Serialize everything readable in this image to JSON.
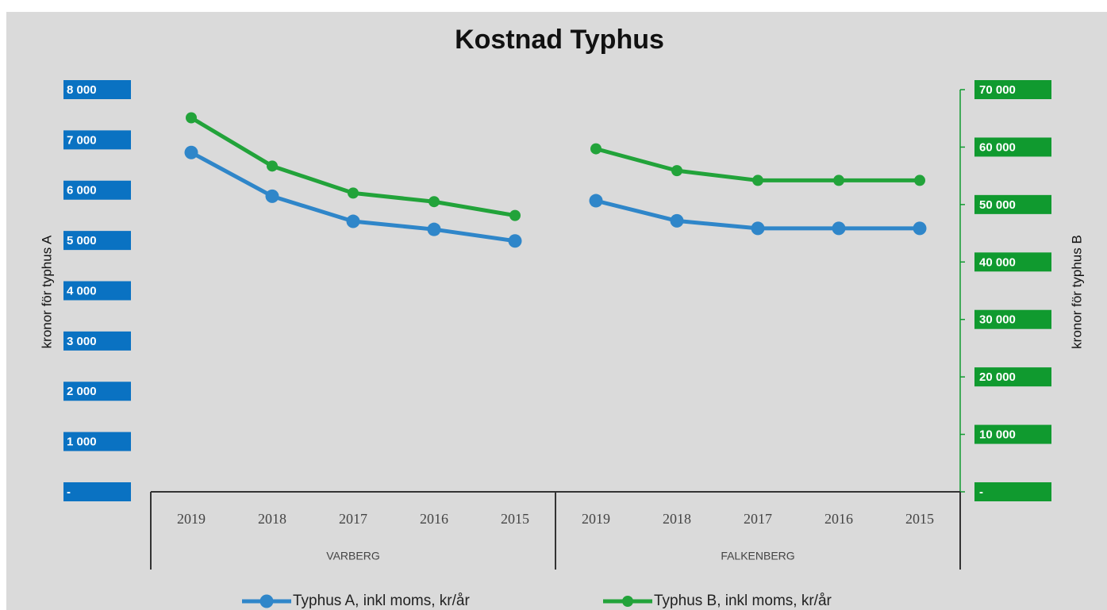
{
  "chart_data": {
    "type": "line",
    "title": "Kostnad Typhus",
    "categories": [
      "2019",
      "2018",
      "2017",
      "2016",
      "2015",
      "2019",
      "2018",
      "2017",
      "2016",
      "2015"
    ],
    "groups": [
      {
        "name": "VARBERG",
        "count": 5
      },
      {
        "name": "FALKENBERG",
        "count": 5
      }
    ],
    "y_label": "kronor för typhus A",
    "y2_label": "kronor för typhus B",
    "ylim": [
      0,
      8000
    ],
    "yticks": [
      {
        "value": 0,
        "label": "-"
      },
      {
        "value": 1000,
        "label": "1 000"
      },
      {
        "value": 2000,
        "label": "2 000"
      },
      {
        "value": 3000,
        "label": "3 000"
      },
      {
        "value": 4000,
        "label": "4 000"
      },
      {
        "value": 5000,
        "label": "5 000"
      },
      {
        "value": 6000,
        "label": "6 000"
      },
      {
        "value": 7000,
        "label": "7 000"
      },
      {
        "value": 8000,
        "label": "8 000"
      }
    ],
    "y2lim": [
      0,
      70000
    ],
    "y2ticks": [
      {
        "value": 0,
        "label": "-"
      },
      {
        "value": 10000,
        "label": "10 000"
      },
      {
        "value": 20000,
        "label": "20 000"
      },
      {
        "value": 30000,
        "label": "30 000"
      },
      {
        "value": 40000,
        "label": "40 000"
      },
      {
        "value": 50000,
        "label": "50 000"
      },
      {
        "value": 60000,
        "label": "60 000"
      },
      {
        "value": 70000,
        "label": "70 000"
      }
    ],
    "series": [
      {
        "name": "Typhus A, inkl moms, kr/år",
        "color": "#2f86c9",
        "axis": "y",
        "values": [
          6750,
          5880,
          5380,
          5220,
          4990,
          5790,
          5390,
          5240,
          5240,
          5240
        ]
      },
      {
        "name": "Typhus B, inkl moms, kr/år",
        "color": "#22a33a",
        "axis": "y2",
        "values": [
          65100,
          56700,
          52000,
          50500,
          48100,
          59700,
          55900,
          54200,
          54200,
          54200
        ]
      }
    ],
    "y_tick_color": "#0a72c2",
    "y2_tick_color": "#109a2f"
  }
}
